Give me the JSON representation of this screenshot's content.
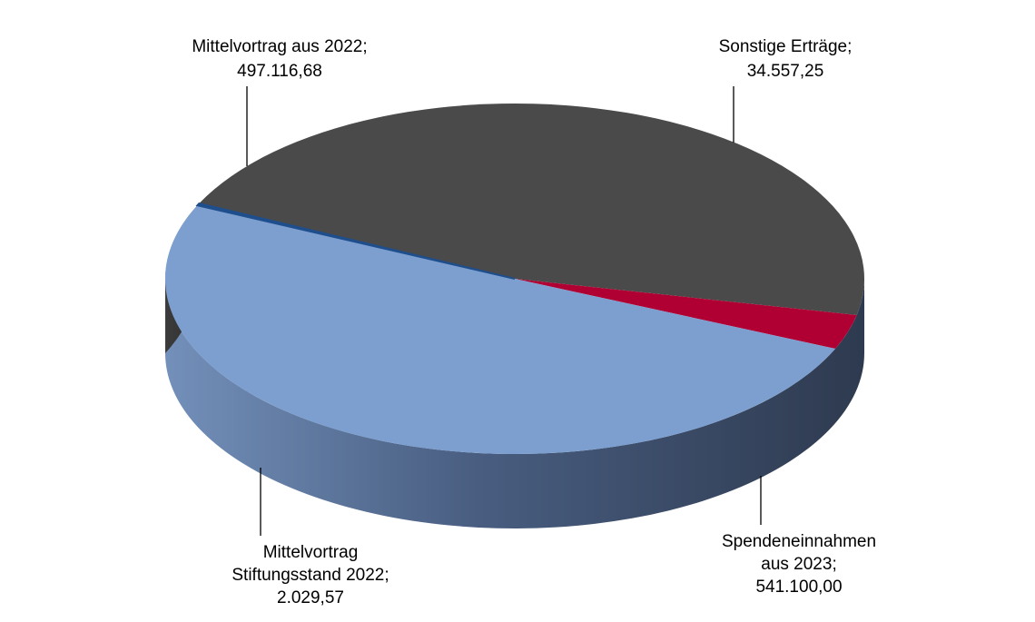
{
  "chart_data": {
    "type": "pie",
    "style": "3d-pie",
    "title": "",
    "slices": [
      {
        "name": "Mittelvortrag aus 2022",
        "value": 497116.68,
        "label_lines": [
          "Mittelvortrag aus 2022;",
          "497.116,68"
        ],
        "color": "#4a4a4a",
        "side_color": "#363636"
      },
      {
        "name": "Sonstige Erträge",
        "value": 34557.25,
        "label_lines": [
          "Sonstige Erträge;",
          "34.557,25"
        ],
        "color": "#b00033",
        "side_color": "#7a0024"
      },
      {
        "name": "Spendeneinnahmen aus 2023",
        "value": 541100.0,
        "label_lines": [
          "Spendeneinnahmen",
          "aus 2023;",
          "541.100,00"
        ],
        "color": "#7d9fcf",
        "side_color": "#34425a"
      },
      {
        "name": "Mittelvortrag Stiftungsstand 2022",
        "value": 2029.57,
        "label_lines": [
          "Mittelvortrag",
          "Stiftungsstand 2022;",
          "2.029,57"
        ],
        "color": "#1f4e8c",
        "side_color": "#1f4e8c"
      }
    ]
  }
}
